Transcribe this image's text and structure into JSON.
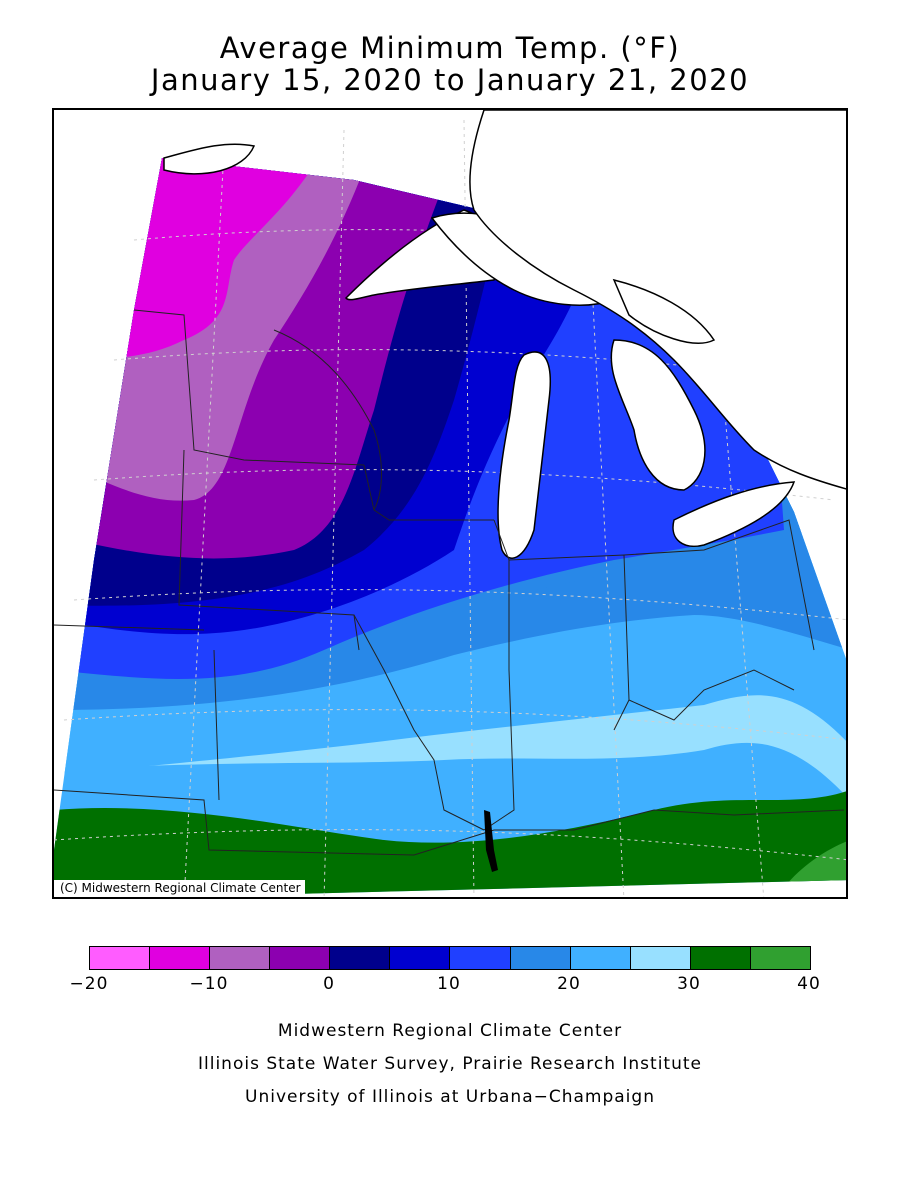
{
  "header": {
    "title": "Average Minimum Temp. (°F)",
    "subtitle": "January 15, 2020 to January 21, 2020"
  },
  "map": {
    "credit": "(C) Midwestern Regional Climate Center",
    "region": "Upper Midwest / Great Lakes",
    "lake_color": "#ffffff",
    "outline_color": "#000000",
    "grid_color": "#d0d0d0"
  },
  "legend": {
    "unit": "°F",
    "bins": [
      {
        "from": -20,
        "to": -15,
        "color": "#ff5cff"
      },
      {
        "from": -15,
        "to": -10,
        "color": "#e000e0"
      },
      {
        "from": -10,
        "to": -5,
        "color": "#b060c0"
      },
      {
        "from": -5,
        "to": 0,
        "color": "#8c00b0"
      },
      {
        "from": 0,
        "to": 5,
        "color": "#00008c"
      },
      {
        "from": 5,
        "to": 10,
        "color": "#0000d0"
      },
      {
        "from": 10,
        "to": 15,
        "color": "#2040ff"
      },
      {
        "from": 15,
        "to": 20,
        "color": "#2888e8"
      },
      {
        "from": 20,
        "to": 25,
        "color": "#40b0ff"
      },
      {
        "from": 25,
        "to": 30,
        "color": "#98e0ff"
      },
      {
        "from": 30,
        "to": 35,
        "color": "#007000"
      },
      {
        "from": 35,
        "to": 40,
        "color": "#30a030"
      }
    ],
    "tick_labels": [
      "−20",
      "−10",
      "0",
      "10",
      "20",
      "30",
      "40"
    ]
  },
  "footer": {
    "line1": "Midwestern Regional Climate Center",
    "line2": "Illinois State Water Survey, Prairie Research Institute",
    "line3": "University of Illinois at Urbana−Champaign"
  }
}
